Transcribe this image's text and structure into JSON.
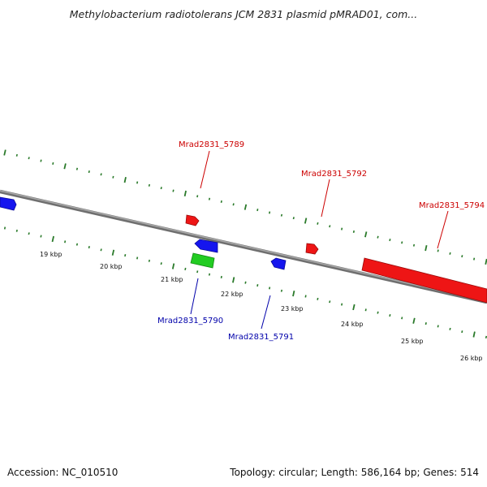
{
  "title": "Methylobacterium radiotolerans JCM 2831 plasmid pMRAD01, com...",
  "footer": {
    "accession": "Accession: NC_010510",
    "summary": "Topology: circular; Length: 586,164 bp; Genes: 514"
  },
  "colors": {
    "forward_gene": "#ee1111",
    "reverse_gene": "#1111ee",
    "rna_gene": "#22cc22",
    "forward_label": "#cc0000",
    "reverse_label": "#0000aa",
    "tick": "#2a7a2a",
    "backbone": "#8a8a8a"
  },
  "scale_labels": [
    "19 kbp",
    "20 kbp",
    "21 kbp",
    "22 kbp",
    "23 kbp",
    "24 kbp",
    "25 kbp",
    "26 kbp"
  ],
  "gene_labels": {
    "forward": [
      "Mrad2831_5789",
      "Mrad2831_5792",
      "Mrad2831_5794"
    ],
    "reverse": [
      "Mrad2831_5790",
      "Mrad2831_5791"
    ]
  }
}
